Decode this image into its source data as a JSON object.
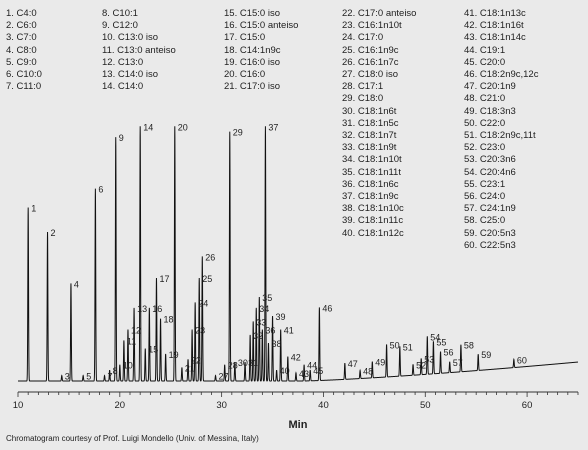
{
  "legend": [
    "1.  C4:0",
    "2.  C6:0",
    "3.  C7:0",
    "4.  C8:0",
    "5.  C9:0",
    "6.  C10:0",
    "7.  C11:0",
    "8.  C10:1",
    "9.  C12:0",
    "10.  C13:0 iso",
    "11.  C13:0 anteiso",
    "12.  C13:0",
    "13.  C14:0 iso",
    "14.  C14:0",
    "15.  C15:0 iso",
    "16.  C15:0 anteiso",
    "17.  C15:0",
    "18.  C14:1n9c",
    "19.  C16:0 iso",
    "20.  C16:0",
    "21.  C17:0 iso",
    "22.  C17:0 anteiso",
    "23.  C16:1n10t",
    "24.  C17:0",
    "25.  C16:1n9c",
    "26.  C16:1n7c",
    "27.  C18:0 iso",
    "28.  C17:1",
    "29.  C18:0",
    "30.  C18:1n6t",
    "31.  C18:1n5c",
    "32.  C18:1n7t",
    "33.  C18:1n9t",
    "34.  C18:1n10t",
    "35.  C18:1n11t",
    "36.  C18:1n6c",
    "37.  C18:1n9c",
    "38.  C18:1n10c",
    "39.  C18:1n11c",
    "40.  C18:1n12c",
    "41.  C18:1n13c",
    "42.  C18:1n16t",
    "43.  C18:1n14c",
    "44.  C19:1",
    "45.  C20:0",
    "46.  C18:2n9c,12c",
    "47.  C20:1n9",
    "48.  C21:0",
    "49.  C18:3n3",
    "50.  C22:0",
    "51.  C18:2n9c,11t",
    "52.  C23:0",
    "53.  C20:3n6",
    "54.  C20:4n6",
    "55.  C23:1",
    "56.  C24:0",
    "57.  C24:1n9",
    "58.  C25:0",
    "59.  C20:5n3",
    "60.  C22:5n3"
  ],
  "chart_data": {
    "type": "line",
    "title": "",
    "xlabel": "Min",
    "ylabel": "",
    "xlim": [
      10,
      65
    ],
    "x_ticks": [
      "10",
      "20",
      "30",
      "40",
      "50",
      "60"
    ],
    "grid": false,
    "peaks": [
      {
        "label": "1",
        "rt": 11.0,
        "height": 0.64
      },
      {
        "label": "2",
        "rt": 12.9,
        "height": 0.55
      },
      {
        "label": "3",
        "rt": 14.3,
        "height": 0.02
      },
      {
        "label": "4",
        "rt": 15.2,
        "height": 0.36
      },
      {
        "label": "5",
        "rt": 16.4,
        "height": 0.02
      },
      {
        "label": "6",
        "rt": 17.6,
        "height": 0.71
      },
      {
        "label": "7",
        "rt": 18.5,
        "height": 0.02
      },
      {
        "label": "8",
        "rt": 19.0,
        "height": 0.04
      },
      {
        "label": "9",
        "rt": 19.6,
        "height": 0.9
      },
      {
        "label": "10",
        "rt": 20.0,
        "height": 0.06
      },
      {
        "label": "11",
        "rt": 20.4,
        "height": 0.15
      },
      {
        "label": "12",
        "rt": 20.8,
        "height": 0.19
      },
      {
        "label": "13",
        "rt": 21.4,
        "height": 0.27
      },
      {
        "label": "14",
        "rt": 22.0,
        "height": 0.94
      },
      {
        "label": "15",
        "rt": 22.5,
        "height": 0.12
      },
      {
        "label": "16",
        "rt": 22.9,
        "height": 0.27
      },
      {
        "label": "17",
        "rt": 23.6,
        "height": 0.38
      },
      {
        "label": "18",
        "rt": 24.0,
        "height": 0.23
      },
      {
        "label": "19",
        "rt": 24.5,
        "height": 0.1
      },
      {
        "label": "20",
        "rt": 25.4,
        "height": 0.94
      },
      {
        "label": "21",
        "rt": 26.1,
        "height": 0.05
      },
      {
        "label": "22",
        "rt": 26.7,
        "height": 0.08
      },
      {
        "label": "23",
        "rt": 27.1,
        "height": 0.19
      },
      {
        "label": "24",
        "rt": 27.4,
        "height": 0.29
      },
      {
        "label": "25",
        "rt": 27.8,
        "height": 0.38
      },
      {
        "label": "26",
        "rt": 28.1,
        "height": 0.46
      },
      {
        "label": "27",
        "rt": 29.4,
        "height": 0.02
      },
      {
        "label": "28",
        "rt": 30.3,
        "height": 0.06
      },
      {
        "label": "29",
        "rt": 30.8,
        "height": 0.92
      },
      {
        "label": "30",
        "rt": 31.3,
        "height": 0.07
      },
      {
        "label": "31",
        "rt": 32.3,
        "height": 0.07
      },
      {
        "label": "32",
        "rt": 32.8,
        "height": 0.17
      },
      {
        "label": "33",
        "rt": 33.1,
        "height": 0.22
      },
      {
        "label": "34",
        "rt": 33.4,
        "height": 0.27
      },
      {
        "label": "35",
        "rt": 33.7,
        "height": 0.31
      },
      {
        "label": "36",
        "rt": 34.0,
        "height": 0.19
      },
      {
        "label": "37",
        "rt": 34.3,
        "height": 0.94
      },
      {
        "label": "38",
        "rt": 34.6,
        "height": 0.14
      },
      {
        "label": "39",
        "rt": 35.0,
        "height": 0.24
      },
      {
        "label": "40",
        "rt": 35.4,
        "height": 0.04
      },
      {
        "label": "41",
        "rt": 35.8,
        "height": 0.19
      },
      {
        "label": "42",
        "rt": 36.5,
        "height": 0.09
      },
      {
        "label": "43",
        "rt": 37.3,
        "height": 0.03
      },
      {
        "label": "44",
        "rt": 38.1,
        "height": 0.06
      },
      {
        "label": "45",
        "rt": 38.7,
        "height": 0.04
      },
      {
        "label": "46",
        "rt": 39.6,
        "height": 0.27
      },
      {
        "label": "47",
        "rt": 42.1,
        "height": 0.06
      },
      {
        "label": "48",
        "rt": 43.6,
        "height": 0.03
      },
      {
        "label": "49",
        "rt": 44.8,
        "height": 0.06
      },
      {
        "label": "50",
        "rt": 46.2,
        "height": 0.12
      },
      {
        "label": "51",
        "rt": 47.5,
        "height": 0.11
      },
      {
        "label": "52",
        "rt": 48.8,
        "height": 0.04
      },
      {
        "label": "53",
        "rt": 49.6,
        "height": 0.06
      },
      {
        "label": "54",
        "rt": 50.2,
        "height": 0.14
      },
      {
        "label": "55",
        "rt": 50.8,
        "height": 0.12
      },
      {
        "label": "56",
        "rt": 51.5,
        "height": 0.08
      },
      {
        "label": "57",
        "rt": 52.4,
        "height": 0.04
      },
      {
        "label": "58",
        "rt": 53.5,
        "height": 0.1
      },
      {
        "label": "59",
        "rt": 55.2,
        "height": 0.06
      },
      {
        "label": "60",
        "rt": 58.7,
        "height": 0.03
      }
    ],
    "baseline_rise": 0.07,
    "colors": {
      "trace": "#111111",
      "background": "#eaeaea",
      "axis": "#333333"
    }
  },
  "credit": "Chromatogram courtesy of Prof. Luigi Mondello (Univ. of Messina, Italy)"
}
